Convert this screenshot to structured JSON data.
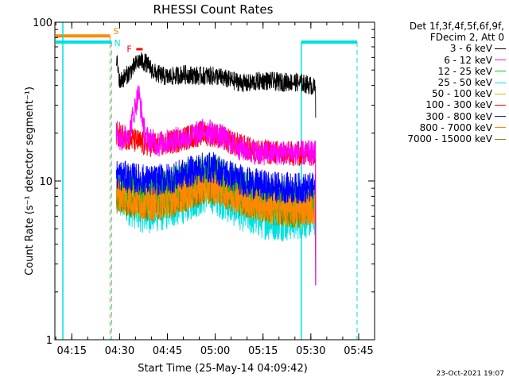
{
  "chart_data": {
    "type": "line",
    "title": "RHESSI Count Rates",
    "xlabel": "Start Time (25-May-14 04:09:42)",
    "ylabel": "Count Rate (s⁻¹ detector segment⁻¹)",
    "yscale": "log",
    "ylim": [
      1,
      100
    ],
    "xlim": [
      "04:09:42",
      "05:50:00"
    ],
    "y_ticks": [
      "1",
      "10",
      "100"
    ],
    "x_ticks": [
      "04:15",
      "04:30",
      "04:45",
      "05:00",
      "05:15",
      "05:30",
      "05:45"
    ],
    "legend_header": [
      "Det 1f,3f,4f,5f,6f,9f,",
      "FDecim 2, Att 0"
    ],
    "legend_position": "right",
    "markers": {
      "S_label": "S",
      "N_label": "N",
      "F_label": "F",
      "night_end": "04:27:00",
      "saa_end": "04:27:30",
      "night_start": "05:27:00",
      "saa_start": "05:44:30"
    },
    "series": [
      {
        "name": "3 - 6 keV",
        "color": "#000000",
        "points": [
          [
            "04:29:00",
            60
          ],
          [
            "04:30:00",
            42
          ],
          [
            "04:33:00",
            48
          ],
          [
            "04:36:00",
            57
          ],
          [
            "04:38:00",
            56
          ],
          [
            "04:41:00",
            48
          ],
          [
            "04:45:00",
            45
          ],
          [
            "04:50:00",
            47
          ],
          [
            "04:55:00",
            46
          ],
          [
            "05:00:00",
            46
          ],
          [
            "05:05:00",
            43
          ],
          [
            "05:10:00",
            41
          ],
          [
            "05:15:00",
            43
          ],
          [
            "05:20:00",
            42
          ],
          [
            "05:25:00",
            42
          ],
          [
            "05:28:00",
            41
          ],
          [
            "05:30:00",
            40
          ],
          [
            "05:31:30",
            38
          ]
        ]
      },
      {
        "name": "6 - 12 keV",
        "color": "#ff00ff",
        "points": [
          [
            "04:29:00",
            22
          ],
          [
            "04:30:00",
            18
          ],
          [
            "04:33:00",
            20
          ],
          [
            "04:35:00",
            30
          ],
          [
            "04:36:00",
            36
          ],
          [
            "04:37:00",
            26
          ],
          [
            "04:38:00",
            19
          ],
          [
            "04:42:00",
            17
          ],
          [
            "04:46:00",
            18
          ],
          [
            "04:52:00",
            19
          ],
          [
            "04:57:00",
            21
          ],
          [
            "05:02:00",
            19
          ],
          [
            "05:08:00",
            16
          ],
          [
            "05:14:00",
            15
          ],
          [
            "05:20:00",
            15
          ],
          [
            "05:26:00",
            15
          ],
          [
            "05:31:30",
            15
          ]
        ]
      },
      {
        "name": "12 - 25 keV",
        "color": "#00cc00",
        "points": [
          [
            "04:29:00",
            10
          ],
          [
            "04:32:00",
            9
          ],
          [
            "04:40:00",
            8.5
          ],
          [
            "04:47:00",
            9.5
          ],
          [
            "04:55:00",
            11
          ],
          [
            "04:59:00",
            11.5
          ],
          [
            "05:04:00",
            10
          ],
          [
            "05:10:00",
            8.5
          ],
          [
            "05:18:00",
            7.8
          ],
          [
            "05:25:00",
            7.5
          ],
          [
            "05:31:30",
            7.5
          ]
        ]
      },
      {
        "name": "25 - 50 keV",
        "color": "#00e0e0",
        "points": [
          [
            "04:29:00",
            8
          ],
          [
            "04:33:00",
            7
          ],
          [
            "04:38:00",
            6.2
          ],
          [
            "04:44:00",
            6.5
          ],
          [
            "04:50:00",
            7.2
          ],
          [
            "04:58:00",
            8.6
          ],
          [
            "05:03:00",
            7.5
          ],
          [
            "05:10:00",
            6.2
          ],
          [
            "05:16:00",
            5.7
          ],
          [
            "05:22:00",
            5.6
          ],
          [
            "05:28:00",
            5.8
          ],
          [
            "05:31:30",
            6
          ]
        ]
      },
      {
        "name": "50 - 100 keV",
        "color": "#c8c800",
        "points": [
          [
            "04:29:00",
            8.5
          ],
          [
            "04:33:00",
            7.8
          ],
          [
            "04:40:00",
            7.3
          ],
          [
            "04:47:00",
            8
          ],
          [
            "04:55:00",
            9.2
          ],
          [
            "05:00:00",
            9.5
          ],
          [
            "05:05:00",
            8.5
          ],
          [
            "05:12:00",
            7.4
          ],
          [
            "05:20:00",
            6.8
          ],
          [
            "05:26:00",
            6.6
          ],
          [
            "05:31:30",
            6.8
          ]
        ]
      },
      {
        "name": "100 - 300 keV",
        "color": "#ff0000",
        "points": [
          [
            "04:29:00",
            20
          ],
          [
            "04:33:00",
            18.5
          ],
          [
            "04:38:00",
            17
          ],
          [
            "04:44:00",
            17
          ],
          [
            "04:50:00",
            18.5
          ],
          [
            "04:56:00",
            20
          ],
          [
            "05:00:00",
            19.5
          ],
          [
            "05:05:00",
            17.5
          ],
          [
            "05:12:00",
            15.5
          ],
          [
            "05:20:00",
            15
          ],
          [
            "05:26:00",
            14.8
          ],
          [
            "05:31:30",
            15
          ]
        ]
      },
      {
        "name": "300 - 800 keV",
        "color": "#0000ff",
        "points": [
          [
            "04:29:00",
            11
          ],
          [
            "04:33:00",
            10.5
          ],
          [
            "04:40:00",
            10
          ],
          [
            "04:47:00",
            10.5
          ],
          [
            "04:55:00",
            12
          ],
          [
            "04:59:00",
            12.2
          ],
          [
            "05:04:00",
            11
          ],
          [
            "05:10:00",
            9.8
          ],
          [
            "05:17:00",
            9.2
          ],
          [
            "05:24:00",
            9
          ],
          [
            "05:31:30",
            9
          ]
        ]
      },
      {
        "name": "800 - 7000 keV",
        "color": "#ff8800",
        "points": [
          [
            "04:29:00",
            8.4
          ],
          [
            "04:33:00",
            7.8
          ],
          [
            "04:40:00",
            7.2
          ],
          [
            "04:47:00",
            7.8
          ],
          [
            "04:55:00",
            9
          ],
          [
            "04:59:00",
            9.4
          ],
          [
            "05:04:00",
            8.5
          ],
          [
            "05:10:00",
            7.5
          ],
          [
            "05:18:00",
            6.9
          ],
          [
            "05:25:00",
            6.7
          ],
          [
            "05:31:30",
            6.8
          ]
        ]
      },
      {
        "name": "7000 - 15000 keV",
        "color": "#808000",
        "points": [
          [
            "04:29:00",
            8
          ],
          [
            "04:33:00",
            7.5
          ],
          [
            "04:40:00",
            7
          ],
          [
            "04:47:00",
            7.6
          ],
          [
            "04:55:00",
            8.8
          ],
          [
            "04:59:00",
            9.1
          ],
          [
            "05:04:00",
            8.2
          ],
          [
            "05:10:00",
            7.3
          ],
          [
            "05:18:00",
            6.7
          ],
          [
            "05:25:00",
            6.5
          ],
          [
            "05:31:30",
            6.6
          ]
        ]
      }
    ]
  },
  "footer": {
    "stamp": "23-Oct-2021 19:07"
  }
}
